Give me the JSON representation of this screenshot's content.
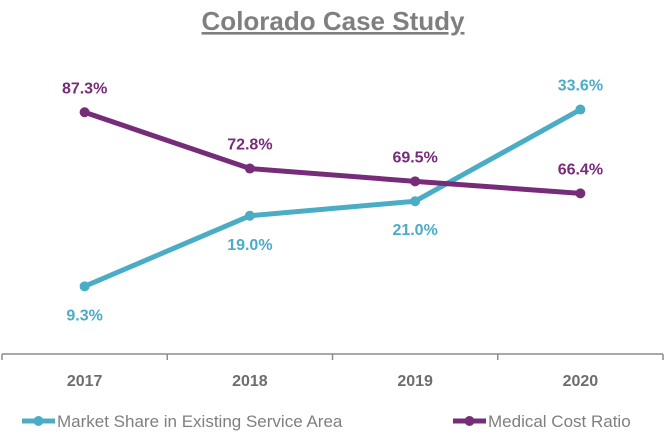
{
  "chart_data": {
    "type": "line",
    "title": "Colorado Case Study",
    "categories": [
      "2017",
      "2018",
      "2019",
      "2020"
    ],
    "series": [
      {
        "name": "Market Share in Existing Service Area",
        "values": [
          9.3,
          19.0,
          21.0,
          33.6
        ],
        "labels": [
          "9.3%",
          "19.0%",
          "21.0%",
          "33.6%"
        ],
        "color": "#4bacc6",
        "axis": "primary",
        "ylim": [
          0,
          40
        ],
        "label_position": [
          "below",
          "below",
          "below",
          "above"
        ]
      },
      {
        "name": "Medical Cost Ratio",
        "values": [
          87.3,
          72.8,
          69.5,
          66.4
        ],
        "labels": [
          "87.3%",
          "72.8%",
          "69.5%",
          "66.4%"
        ],
        "color": "#772c7a",
        "axis": "secondary",
        "ylim": [
          25,
          100
        ],
        "label_position": [
          "above",
          "above",
          "above",
          "above"
        ]
      }
    ],
    "grid": false,
    "legend": "bottom",
    "text_color": "#7f7f7f"
  }
}
